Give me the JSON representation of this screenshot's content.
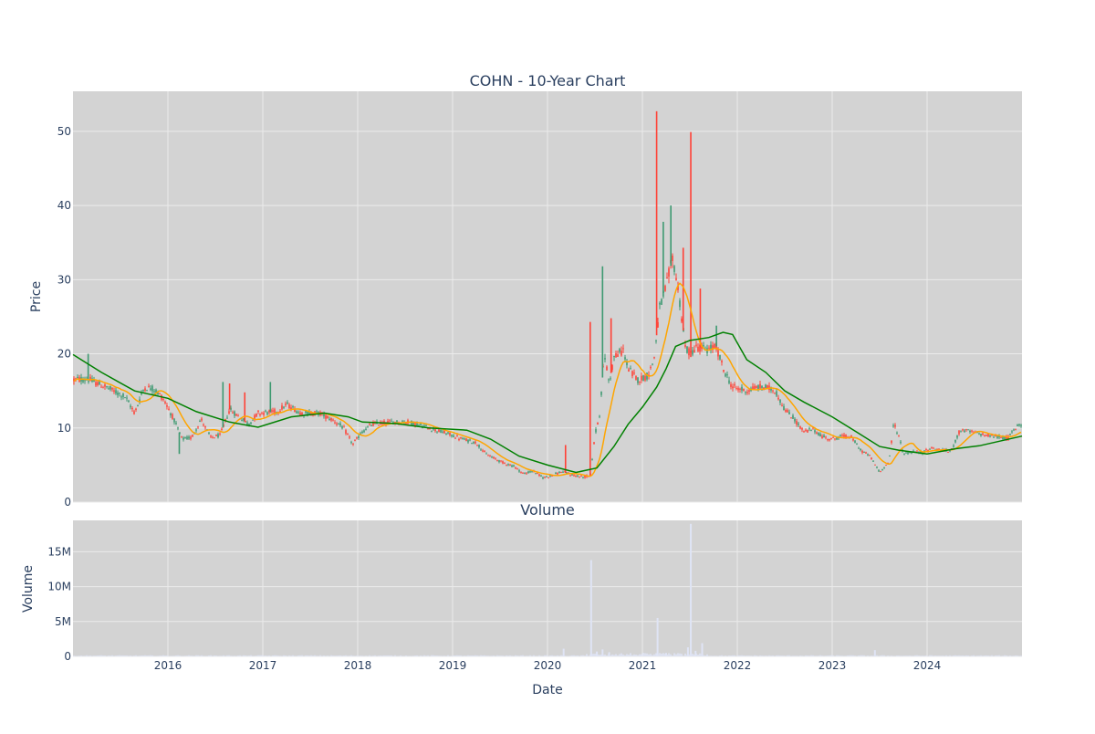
{
  "chart_data": {
    "type": "candlestick",
    "title": "COHN - 10-Year Chart",
    "colors": {
      "plot_bg": "#d3d3d3",
      "grid": "#ebebeb",
      "up": "#3d9970",
      "down": "#ff4136",
      "ma_short": "#ffa500",
      "ma_long": "#008000",
      "volume": "#dfe4f5",
      "text": "#2a3f5f"
    },
    "price_panel": {
      "ylabel": "Price",
      "ylim": [
        0,
        55.4
      ],
      "yticks": [
        0,
        10,
        20,
        30,
        40,
        50
      ],
      "grid": true
    },
    "volume_panel": {
      "title": "Volume",
      "ylabel": "Volume",
      "ylim": [
        0,
        19.5
      ],
      "yticks": [
        0,
        5,
        10,
        15
      ],
      "ytick_labels": [
        "0",
        "5M",
        "10M",
        "15M"
      ],
      "grid": true
    },
    "xaxis": {
      "label": "Date",
      "range": [
        2015.0,
        2025.0
      ],
      "ticks": [
        2016,
        2017,
        2018,
        2019,
        2020,
        2021,
        2022,
        2023,
        2024
      ],
      "tick_labels": [
        "2016",
        "2017",
        "2018",
        "2019",
        "2020",
        "2021",
        "2022",
        "2023",
        "2024"
      ]
    },
    "price_anchors": [
      [
        2015.0,
        16.5
      ],
      [
        2015.15,
        16.6
      ],
      [
        2015.35,
        15.5
      ],
      [
        2015.55,
        14.2
      ],
      [
        2015.65,
        12.0
      ],
      [
        2015.75,
        15.5
      ],
      [
        2015.85,
        15.3
      ],
      [
        2015.95,
        14.0
      ],
      [
        2016.05,
        11.5
      ],
      [
        2016.15,
        8.5
      ],
      [
        2016.25,
        8.7
      ],
      [
        2016.35,
        11.2
      ],
      [
        2016.45,
        8.7
      ],
      [
        2016.55,
        9.0
      ],
      [
        2016.65,
        12.5
      ],
      [
        2016.75,
        11.5
      ],
      [
        2016.85,
        10.5
      ],
      [
        2016.95,
        12.0
      ],
      [
        2017.15,
        12.2
      ],
      [
        2017.25,
        13.2
      ],
      [
        2017.4,
        12.0
      ],
      [
        2017.6,
        12.0
      ],
      [
        2017.75,
        11.0
      ],
      [
        2017.85,
        10.0
      ],
      [
        2017.95,
        7.8
      ],
      [
        2018.05,
        9.5
      ],
      [
        2018.15,
        10.5
      ],
      [
        2018.35,
        10.8
      ],
      [
        2018.55,
        10.8
      ],
      [
        2018.75,
        10.0
      ],
      [
        2018.95,
        9.2
      ],
      [
        2019.1,
        8.5
      ],
      [
        2019.25,
        8.0
      ],
      [
        2019.35,
        6.5
      ],
      [
        2019.5,
        5.5
      ],
      [
        2019.65,
        4.8
      ],
      [
        2019.75,
        3.8
      ],
      [
        2019.85,
        4.2
      ],
      [
        2019.95,
        3.3
      ],
      [
        2020.05,
        3.6
      ],
      [
        2020.15,
        4.1
      ],
      [
        2020.25,
        3.7
      ],
      [
        2020.35,
        3.4
      ],
      [
        2020.45,
        3.5
      ],
      [
        2020.5,
        9.0
      ],
      [
        2020.55,
        12.0
      ],
      [
        2020.6,
        20.0
      ],
      [
        2020.65,
        16.0
      ],
      [
        2020.7,
        19.5
      ],
      [
        2020.8,
        20.5
      ],
      [
        2020.85,
        18.0
      ],
      [
        2020.95,
        16.5
      ],
      [
        2021.05,
        17.0
      ],
      [
        2021.12,
        19.0
      ],
      [
        2021.18,
        26.0
      ],
      [
        2021.25,
        29.0
      ],
      [
        2021.32,
        33.0
      ],
      [
        2021.38,
        28.5
      ],
      [
        2021.45,
        21.0
      ],
      [
        2021.5,
        20.0
      ],
      [
        2021.58,
        21.0
      ],
      [
        2021.68,
        20.5
      ],
      [
        2021.78,
        21.0
      ],
      [
        2021.85,
        18.0
      ],
      [
        2021.95,
        15.5
      ],
      [
        2022.1,
        15.0
      ],
      [
        2022.2,
        15.5
      ],
      [
        2022.3,
        15.5
      ],
      [
        2022.4,
        15.0
      ],
      [
        2022.5,
        12.5
      ],
      [
        2022.6,
        11.2
      ],
      [
        2022.7,
        9.5
      ],
      [
        2022.8,
        9.8
      ],
      [
        2022.9,
        8.8
      ],
      [
        2023.0,
        8.5
      ],
      [
        2023.1,
        8.9
      ],
      [
        2023.2,
        8.8
      ],
      [
        2023.3,
        7.0
      ],
      [
        2023.4,
        6.2
      ],
      [
        2023.5,
        4.0
      ],
      [
        2023.6,
        5.5
      ],
      [
        2023.65,
        10.8
      ],
      [
        2023.7,
        9.0
      ],
      [
        2023.75,
        6.5
      ],
      [
        2023.85,
        6.8
      ],
      [
        2023.95,
        6.7
      ],
      [
        2024.05,
        7.3
      ],
      [
        2024.15,
        7.0
      ],
      [
        2024.25,
        6.8
      ],
      [
        2024.35,
        9.8
      ],
      [
        2024.45,
        9.5
      ],
      [
        2024.55,
        9.2
      ],
      [
        2024.65,
        9.0
      ],
      [
        2024.75,
        8.8
      ],
      [
        2024.85,
        8.6
      ],
      [
        2024.95,
        10.3
      ],
      [
        2025.0,
        10.5
      ]
    ],
    "price_spikes": [
      [
        2015.16,
        20.0
      ],
      [
        2016.12,
        6.5
      ],
      [
        2016.58,
        16.2
      ],
      [
        2016.65,
        16.0
      ],
      [
        2016.81,
        14.8
      ],
      [
        2017.08,
        16.2
      ],
      [
        2020.45,
        24.3
      ],
      [
        2020.58,
        31.8
      ],
      [
        2020.67,
        24.8
      ],
      [
        2021.15,
        52.7
      ],
      [
        2021.22,
        37.8
      ],
      [
        2021.3,
        40.0
      ],
      [
        2021.43,
        34.3
      ],
      [
        2021.51,
        49.9
      ],
      [
        2021.61,
        28.8
      ],
      [
        2021.78,
        23.8
      ],
      [
        2020.19,
        7.7
      ]
    ],
    "ma_long": [
      [
        2015.0,
        19.9
      ],
      [
        2015.3,
        17.5
      ],
      [
        2015.65,
        15.0
      ],
      [
        2016.0,
        14.0
      ],
      [
        2016.3,
        12.2
      ],
      [
        2016.65,
        10.8
      ],
      [
        2016.95,
        10.1
      ],
      [
        2017.3,
        11.5
      ],
      [
        2017.65,
        12.0
      ],
      [
        2017.9,
        11.5
      ],
      [
        2018.05,
        10.8
      ],
      [
        2018.4,
        10.6
      ],
      [
        2018.75,
        10.0
      ],
      [
        2019.15,
        9.7
      ],
      [
        2019.4,
        8.5
      ],
      [
        2019.7,
        6.2
      ],
      [
        2020.0,
        5.0
      ],
      [
        2020.3,
        4.0
      ],
      [
        2020.52,
        4.6
      ],
      [
        2020.7,
        7.5
      ],
      [
        2020.85,
        10.5
      ],
      [
        2021.0,
        12.8
      ],
      [
        2021.15,
        15.5
      ],
      [
        2021.25,
        18.0
      ],
      [
        2021.35,
        21.0
      ],
      [
        2021.5,
        21.8
      ],
      [
        2021.7,
        22.2
      ],
      [
        2021.85,
        22.9
      ],
      [
        2021.95,
        22.6
      ],
      [
        2022.1,
        19.2
      ],
      [
        2022.3,
        17.5
      ],
      [
        2022.5,
        15.0
      ],
      [
        2022.7,
        13.5
      ],
      [
        2023.0,
        11.5
      ],
      [
        2023.25,
        9.5
      ],
      [
        2023.5,
        7.5
      ],
      [
        2023.7,
        7.0
      ],
      [
        2024.0,
        6.5
      ],
      [
        2024.3,
        7.2
      ],
      [
        2024.55,
        7.6
      ],
      [
        2025.0,
        8.9
      ]
    ],
    "volume_spikes": [
      [
        2020.46,
        13.8
      ],
      [
        2021.16,
        5.5
      ],
      [
        2021.51,
        19.0
      ],
      [
        2021.63,
        1.9
      ],
      [
        2020.58,
        1.0
      ],
      [
        2020.17,
        1.1
      ],
      [
        2023.45,
        0.9
      ],
      [
        2021.48,
        1.3
      ],
      [
        2020.52,
        0.7
      ],
      [
        2020.65,
        0.6
      ],
      [
        2021.56,
        0.8
      ],
      [
        2021.25,
        0.5
      ]
    ]
  }
}
